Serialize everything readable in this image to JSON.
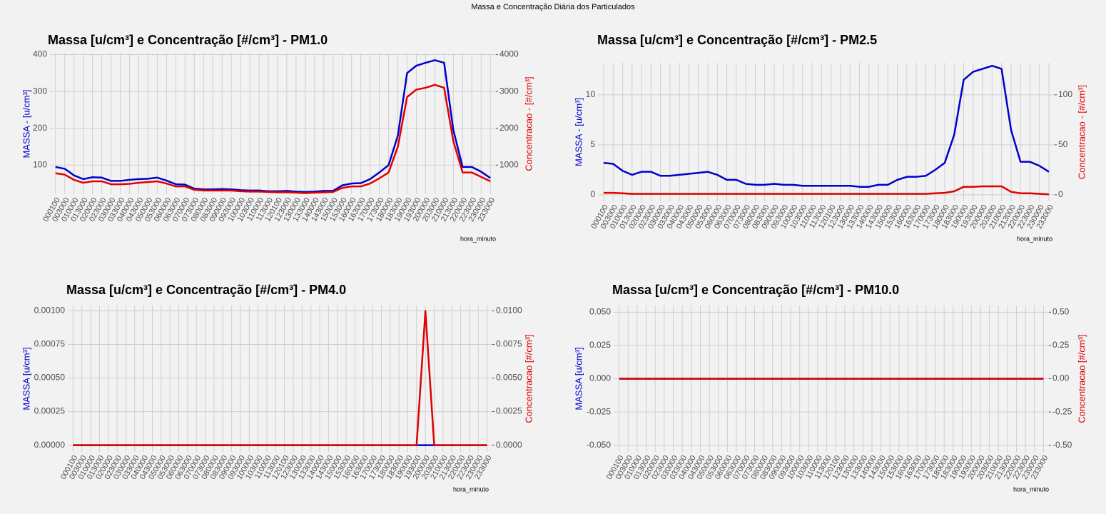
{
  "title": "Massa e Concentração Diária dos Particulados",
  "chart_data": [
    {
      "type": "line",
      "title": "Massa [u/cm³] e Concentração [#/cm³] - PM1.0",
      "xlabel": "hora_minuto",
      "ylabel": "MASSA - [u/cm³]",
      "y2label": "Concentracao - [#/cm³]",
      "categories": [
        "000100",
        "003000",
        "010000",
        "013000",
        "020000",
        "023000",
        "030000",
        "033000",
        "040000",
        "043000",
        "050000",
        "053000",
        "060000",
        "063000",
        "070000",
        "073000",
        "080000",
        "083000",
        "090000",
        "093000",
        "100000",
        "103000",
        "110000",
        "113000",
        "120100",
        "123000",
        "130000",
        "133000",
        "140000",
        "143000",
        "150000",
        "153000",
        "160000",
        "163000",
        "170000",
        "173000",
        "180000",
        "183000",
        "190000",
        "193000",
        "200000",
        "203000",
        "210000",
        "213000",
        "220000",
        "223000",
        "230000",
        "233000"
      ],
      "ylim": [
        21,
        403
      ],
      "yticks": [
        100,
        200,
        300,
        400
      ],
      "y2lim": [
        210,
        4030
      ],
      "y2ticks": [
        1000,
        2000,
        3000,
        4000
      ],
      "grid": true,
      "series": [
        {
          "color": "#0000cc",
          "values": [
            95,
            90,
            72,
            62,
            67,
            66,
            57,
            57,
            60,
            62,
            63,
            66,
            58,
            48,
            47,
            36,
            34,
            34,
            35,
            34,
            32,
            31,
            31,
            29,
            29,
            30,
            28,
            27,
            28,
            30,
            30,
            45,
            50,
            51,
            62,
            80,
            100,
            180,
            350,
            370,
            378,
            385,
            378,
            195,
            95,
            95,
            82,
            65
          ]
        },
        {
          "color": "#e00000",
          "axis": "y2",
          "values": [
            780,
            740,
            600,
            520,
            560,
            560,
            480,
            480,
            490,
            520,
            540,
            560,
            500,
            420,
            420,
            330,
            310,
            310,
            310,
            310,
            290,
            280,
            280,
            270,
            260,
            260,
            250,
            240,
            250,
            260,
            270,
            380,
            420,
            420,
            500,
            640,
            800,
            1500,
            2850,
            3050,
            3100,
            3180,
            3100,
            1650,
            800,
            800,
            680,
            560
          ]
        }
      ]
    },
    {
      "type": "line",
      "title": "Massa [u/cm³] e Concentração [#/cm³] - PM2.5",
      "xlabel": "hora_minuto",
      "ylabel": "MASSA - [u/cm³]",
      "y2label": "Concentracao - [#/cm³]",
      "categories": [
        "000100",
        "003000",
        "010000",
        "013000",
        "020000",
        "023000",
        "030000",
        "033000",
        "040000",
        "043000",
        "050000",
        "053000",
        "060000",
        "063000",
        "070000",
        "073000",
        "080000",
        "083000",
        "090000",
        "093000",
        "100000",
        "103000",
        "110000",
        "113000",
        "120100",
        "123000",
        "130000",
        "133000",
        "140000",
        "143000",
        "150000",
        "153000",
        "160000",
        "163000",
        "170000",
        "173000",
        "180000",
        "183000",
        "190000",
        "193000",
        "200000",
        "203000",
        "210000",
        "213000",
        "220000",
        "223000",
        "230000",
        "233000"
      ],
      "ylim": [
        -0.65,
        13.2
      ],
      "yticks": [
        0,
        5,
        10
      ],
      "y2lim": [
        -6.5,
        132
      ],
      "y2ticks": [
        0,
        50,
        100
      ],
      "grid": true,
      "series": [
        {
          "color": "#0000cc",
          "values": [
            3.2,
            3.1,
            2.4,
            2.0,
            2.3,
            2.3,
            1.9,
            1.9,
            2.0,
            2.1,
            2.2,
            2.3,
            2.0,
            1.5,
            1.5,
            1.1,
            1.0,
            1.0,
            1.1,
            1.0,
            1.0,
            0.9,
            0.9,
            0.9,
            0.9,
            0.9,
            0.9,
            0.8,
            0.8,
            1.0,
            1.0,
            1.5,
            1.8,
            1.8,
            1.9,
            2.5,
            3.2,
            6.0,
            11.5,
            12.3,
            12.6,
            12.9,
            12.6,
            6.5,
            3.3,
            3.3,
            2.9,
            2.3
          ]
        },
        {
          "color": "#e00000",
          "axis": "y2",
          "values": [
            2,
            2,
            1.5,
            1,
            1,
            1,
            1,
            1,
            1,
            1,
            1,
            1,
            1,
            1,
            1,
            1,
            1,
            1,
            1,
            1,
            1,
            1,
            1,
            1,
            1,
            1,
            1,
            1,
            1,
            1,
            1,
            1,
            1,
            1,
            1,
            1.5,
            2,
            3.5,
            8,
            8,
            8.5,
            8.5,
            8.5,
            3,
            1.5,
            1.5,
            1,
            0.5
          ]
        }
      ]
    },
    {
      "type": "line",
      "title": "Massa [u/cm³] e Concentração [#/cm³] - PM4.0",
      "xlabel": "hora_minuto",
      "ylabel": "MASSA [u/cm³]",
      "y2label": "Concentracao [#/cm³]",
      "categories": [
        "000100",
        "003000",
        "010000",
        "013000",
        "020000",
        "023000",
        "030000",
        "033000",
        "040000",
        "043000",
        "050000",
        "053000",
        "060000",
        "063000",
        "070000",
        "073000",
        "080000",
        "083000",
        "090000",
        "093000",
        "100000",
        "103000",
        "110000",
        "113000",
        "120100",
        "123000",
        "130000",
        "133000",
        "140000",
        "143000",
        "150000",
        "153000",
        "160000",
        "163000",
        "170000",
        "173000",
        "180000",
        "183000",
        "190000",
        "193000",
        "200000",
        "203000",
        "210000",
        "213000",
        "220000",
        "223000",
        "230000",
        "233000"
      ],
      "ylim": [
        -5e-05,
        0.00104
      ],
      "yticks": [
        {
          "value": 0,
          "label": "0.00000"
        },
        {
          "value": 0.00025,
          "label": "0.00025"
        },
        {
          "value": 0.0005,
          "label": "0.00050"
        },
        {
          "value": 0.00075,
          "label": "0.00075"
        },
        {
          "value": 0.001,
          "label": "0.00100"
        }
      ],
      "y2lim": [
        -0.0005,
        0.0104
      ],
      "y2ticks": [
        {
          "value": 0,
          "label": "0.0000"
        },
        {
          "value": 0.0025,
          "label": "0.0025"
        },
        {
          "value": 0.005,
          "label": "0.0050"
        },
        {
          "value": 0.0075,
          "label": "0.0075"
        },
        {
          "value": 0.01,
          "label": "0.0100"
        }
      ],
      "grid": true,
      "series": [
        {
          "color": "#0000cc",
          "values": [
            0,
            0,
            0,
            0,
            0,
            0,
            0,
            0,
            0,
            0,
            0,
            0,
            0,
            0,
            0,
            0,
            0,
            0,
            0,
            0,
            0,
            0,
            0,
            0,
            0,
            0,
            0,
            0,
            0,
            0,
            0,
            0,
            0,
            0,
            0,
            0,
            0,
            0,
            0,
            0,
            0,
            0,
            0,
            0,
            0,
            0,
            0,
            0
          ]
        },
        {
          "color": "#e00000",
          "axis": "y2",
          "values": [
            0,
            0,
            0,
            0,
            0,
            0,
            0,
            0,
            0,
            0,
            0,
            0,
            0,
            0,
            0,
            0,
            0,
            0,
            0,
            0,
            0,
            0,
            0,
            0,
            0,
            0,
            0,
            0,
            0,
            0,
            0,
            0,
            0,
            0,
            0,
            0,
            0,
            0,
            0,
            0,
            0.01,
            0,
            0,
            0,
            0,
            0,
            0,
            0
          ]
        }
      ]
    },
    {
      "type": "line",
      "title": "Massa [u/cm³] e Concentração [#/cm³] - PM10.0",
      "xlabel": "hora_minuto",
      "ylabel": "MASSA [u/cm³]",
      "y2label": "Concentracao [#/cm³]",
      "categories": [
        "000100",
        "003000",
        "010000",
        "013000",
        "020000",
        "023000",
        "030000",
        "033000",
        "040000",
        "043000",
        "050000",
        "053000",
        "060000",
        "063000",
        "070000",
        "073000",
        "080000",
        "083000",
        "090000",
        "093000",
        "100000",
        "103000",
        "110000",
        "113000",
        "120100",
        "123000",
        "130000",
        "133000",
        "140000",
        "143000",
        "150000",
        "153000",
        "160000",
        "163000",
        "170000",
        "173000",
        "180000",
        "183000",
        "190000",
        "193000",
        "200000",
        "203000",
        "210000",
        "213000",
        "220000",
        "223000",
        "230000",
        "233000"
      ],
      "ylim": [
        -0.055,
        0.055
      ],
      "yticks": [
        {
          "value": -0.05,
          "label": "-0.050"
        },
        {
          "value": -0.025,
          "label": "-0.025"
        },
        {
          "value": 0,
          "label": "0.000"
        },
        {
          "value": 0.025,
          "label": "0.025"
        },
        {
          "value": 0.05,
          "label": "0.050"
        }
      ],
      "y2lim": [
        -0.55,
        0.55
      ],
      "y2ticks": [
        {
          "value": -0.5,
          "label": "-0.50"
        },
        {
          "value": -0.25,
          "label": "-0.25"
        },
        {
          "value": 0,
          "label": "0.00"
        },
        {
          "value": 0.25,
          "label": "0.25"
        },
        {
          "value": 0.5,
          "label": "0.50"
        }
      ],
      "grid": true,
      "series": [
        {
          "color": "#0000cc",
          "values": [
            0,
            0,
            0,
            0,
            0,
            0,
            0,
            0,
            0,
            0,
            0,
            0,
            0,
            0,
            0,
            0,
            0,
            0,
            0,
            0,
            0,
            0,
            0,
            0,
            0,
            0,
            0,
            0,
            0,
            0,
            0,
            0,
            0,
            0,
            0,
            0,
            0,
            0,
            0,
            0,
            0,
            0,
            0,
            0,
            0,
            0,
            0,
            0
          ]
        },
        {
          "color": "#e00000",
          "axis": "y2",
          "values": [
            0,
            0,
            0,
            0,
            0,
            0,
            0,
            0,
            0,
            0,
            0,
            0,
            0,
            0,
            0,
            0,
            0,
            0,
            0,
            0,
            0,
            0,
            0,
            0,
            0,
            0,
            0,
            0,
            0,
            0,
            0,
            0,
            0,
            0,
            0,
            0,
            0,
            0,
            0,
            0,
            0,
            0,
            0,
            0,
            0,
            0,
            0,
            0
          ]
        }
      ]
    }
  ]
}
